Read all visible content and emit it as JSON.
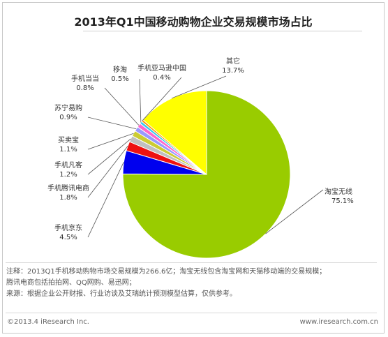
{
  "chart_data": {
    "type": "pie",
    "title": "2013年Q1中国移动购物企业交易规模市场占比",
    "slices": [
      {
        "name": "淘宝无线",
        "value": 75.1,
        "label": "75.1%",
        "color": "#99cc00"
      },
      {
        "name": "手机京东",
        "value": 4.5,
        "label": "4.5%",
        "color": "#0000ee"
      },
      {
        "name": "手机腾讯电商",
        "value": 1.8,
        "label": "1.8%",
        "color": "#ee1111"
      },
      {
        "name": "手机凡客",
        "value": 1.2,
        "label": "1.2%",
        "color": "#c0c0c0"
      },
      {
        "name": "买卖宝",
        "value": 1.1,
        "label": "1.1%",
        "color": "#cccc33"
      },
      {
        "name": "苏宁易购",
        "value": 0.9,
        "label": "0.9%",
        "color": "#9999ff"
      },
      {
        "name": "手机当当",
        "value": 0.8,
        "label": "0.8%",
        "color": "#ff66cc"
      },
      {
        "name": "移淘",
        "value": 0.5,
        "label": "0.5%",
        "color": "#33ccee"
      },
      {
        "name": "手机亚马逊中国",
        "value": 0.4,
        "label": "0.4%",
        "color": "#ff9900"
      },
      {
        "name": "其它",
        "value": 13.7,
        "label": "13.7%",
        "color": "#ffff00"
      }
    ]
  },
  "notes": {
    "line1": "注释：2013Q1手机移动购物市场交易规模为266.6亿；淘宝无线包含淘宝网和天猫移动端的交易规模；",
    "line2": "腾讯电商包括拍拍网、QQ网购、易迅网；",
    "line3": "来源：根据企业公开财报、行业访谈及艾瑞统计预测模型估算，仅供参考。"
  },
  "footer": {
    "copyright": "©2013.4 iResearch Inc.",
    "website": "www.iresearch.com.cn"
  }
}
